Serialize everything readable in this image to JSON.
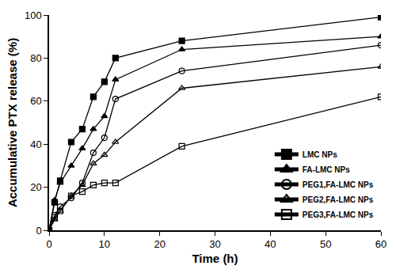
{
  "chart_data": {
    "type": "line",
    "x_label": "Time (h)",
    "y_label": "Accumulative PTX release (%)",
    "x": [
      0,
      1,
      2,
      4,
      6,
      8,
      10,
      12,
      24,
      60
    ],
    "xlim": [
      0,
      60
    ],
    "xticks": [
      0,
      10,
      20,
      30,
      40,
      50,
      60
    ],
    "ylim": [
      0,
      100
    ],
    "yticks": [
      0,
      20,
      40,
      60,
      80,
      100
    ],
    "grid": false,
    "legend": "bottom-right",
    "series": [
      {
        "name": "LMC NPs",
        "color": "#000000",
        "marker": "square",
        "values": [
          0,
          13,
          23,
          41,
          47,
          62,
          69,
          80,
          88,
          99
        ]
      },
      {
        "name": "FA-LMC NPs",
        "color": "#000000",
        "marker": "triangle-up",
        "values": [
          0,
          14,
          22,
          30,
          38,
          47,
          53,
          70,
          84,
          90
        ]
      },
      {
        "name": "PEG1,FA-LMC NPs",
        "color": "#000000",
        "marker": "circle-open",
        "values": [
          0,
          7,
          11,
          15,
          22,
          36,
          43,
          61,
          74,
          86
        ]
      },
      {
        "name": "PEG2,FA-LMC NPs",
        "color": "#000000",
        "marker": "triangle-up-open",
        "values": [
          0,
          5,
          9,
          16,
          21,
          31,
          35,
          41,
          66,
          76
        ]
      },
      {
        "name": "PEG3,FA-LMC NPs",
        "color": "#000000",
        "marker": "square-open",
        "values": [
          0,
          6,
          9,
          16,
          18,
          21,
          22,
          22,
          39,
          62
        ]
      }
    ]
  }
}
